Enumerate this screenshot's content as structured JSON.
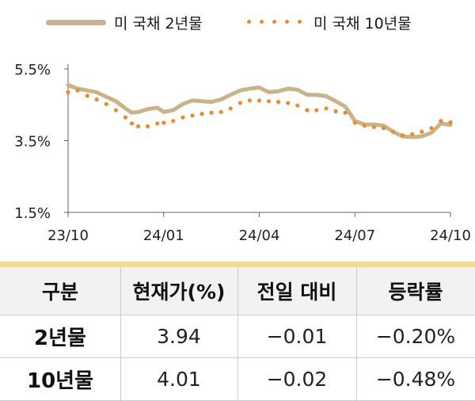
{
  "legend": {
    "series_2y": "미 국채 2년물",
    "series_10y": "미 국채 10년물"
  },
  "table": {
    "headers": [
      "구분",
      "현재가(%)",
      "전일 대비",
      "등락률"
    ],
    "rows": [
      {
        "label": "2년물",
        "price": "3.94",
        "change": "−0.01",
        "rate": "−0.20%"
      },
      {
        "label": "10년물",
        "price": "4.01",
        "change": "−0.02",
        "rate": "−0.48%"
      }
    ]
  },
  "colors": {
    "series_2y": "#c8b38a",
    "series_10y": "#ec8a2f",
    "table_accent": "#f3d99a"
  },
  "chart_data": {
    "type": "line",
    "y_tick_labels": [
      "5.5%",
      "3.5%",
      "1.5%"
    ],
    "y_ticks": [
      5.5,
      3.5,
      1.5
    ],
    "ylim": [
      1.5,
      5.5
    ],
    "x_tick_labels": [
      "23/10",
      "24/01",
      "24/04",
      "24/07",
      "24/10"
    ],
    "x_ticks": [
      0,
      3,
      6,
      9,
      12
    ],
    "xlim": [
      0,
      12
    ],
    "grid": false,
    "legend_position": "top",
    "series": [
      {
        "name": "미 국채 2년물",
        "style": "line",
        "x": [
          0,
          0.3,
          0.6,
          0.9,
          1.2,
          1.5,
          1.8,
          2.0,
          2.2,
          2.5,
          2.8,
          3.0,
          3.3,
          3.6,
          3.9,
          4.2,
          4.5,
          4.8,
          5.1,
          5.4,
          5.7,
          6.0,
          6.3,
          6.6,
          6.9,
          7.2,
          7.5,
          7.8,
          8.1,
          8.4,
          8.7,
          9.0,
          9.3,
          9.6,
          9.9,
          10.2,
          10.5,
          10.8,
          11.1,
          11.4,
          11.7,
          12.0
        ],
        "values": [
          5.05,
          4.95,
          4.9,
          4.85,
          4.72,
          4.6,
          4.4,
          4.28,
          4.3,
          4.38,
          4.42,
          4.3,
          4.35,
          4.52,
          4.62,
          4.6,
          4.58,
          4.65,
          4.78,
          4.9,
          4.95,
          4.98,
          4.85,
          4.88,
          4.95,
          4.92,
          4.78,
          4.78,
          4.74,
          4.6,
          4.45,
          4.05,
          3.95,
          3.95,
          3.92,
          3.75,
          3.62,
          3.6,
          3.62,
          3.72,
          3.98,
          3.94
        ]
      },
      {
        "name": "미 국채 10년물",
        "style": "dotted",
        "x": [
          0,
          0.3,
          0.6,
          0.9,
          1.2,
          1.5,
          1.8,
          2.0,
          2.2,
          2.5,
          2.8,
          3.0,
          3.3,
          3.6,
          3.9,
          4.2,
          4.5,
          4.8,
          5.1,
          5.4,
          5.7,
          6.0,
          6.3,
          6.6,
          6.9,
          7.2,
          7.5,
          7.8,
          8.1,
          8.4,
          8.7,
          9.0,
          9.3,
          9.6,
          9.9,
          10.2,
          10.5,
          10.8,
          11.1,
          11.4,
          11.7,
          12.0
        ],
        "values": [
          4.85,
          4.9,
          4.75,
          4.65,
          4.52,
          4.35,
          4.15,
          3.98,
          3.9,
          3.9,
          3.98,
          4.0,
          4.05,
          4.15,
          4.2,
          4.25,
          4.28,
          4.3,
          4.4,
          4.55,
          4.62,
          4.62,
          4.6,
          4.58,
          4.55,
          4.48,
          4.35,
          4.35,
          4.4,
          4.32,
          4.28,
          4.0,
          3.92,
          3.88,
          3.85,
          3.75,
          3.65,
          3.68,
          3.75,
          3.85,
          4.05,
          4.01
        ]
      }
    ]
  }
}
